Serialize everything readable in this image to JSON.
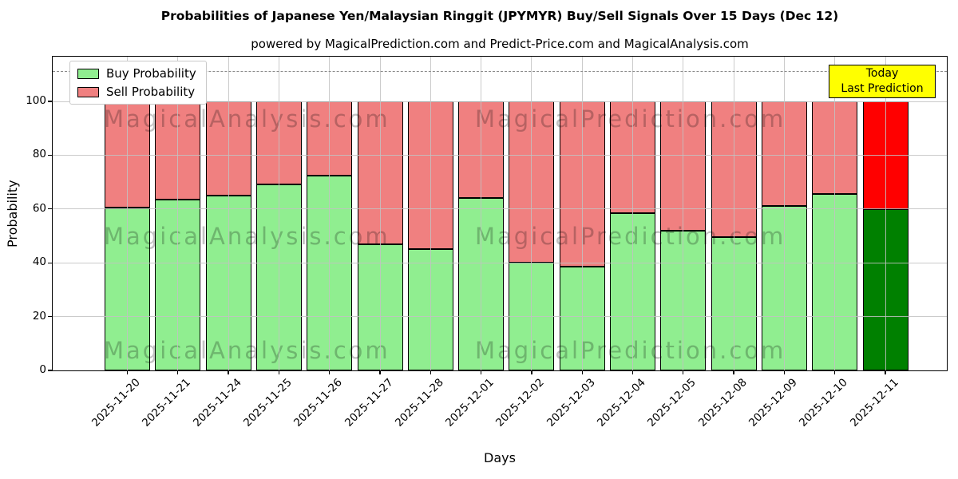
{
  "title": "Probabilities of Japanese Yen/Malaysian Ringgit (JPYMYR) Buy/Sell Signals Over 15 Days (Dec 12)",
  "subtitle": "powered by MagicalPrediction.com and Predict-Price.com and MagicalAnalysis.com",
  "legend": {
    "items": [
      {
        "label": "Buy Probability",
        "color": "#90EE90"
      },
      {
        "label": "Sell Probability",
        "color": "#F08080"
      }
    ]
  },
  "annotation_box": {
    "line1": "Today",
    "line2": "Last Prediction",
    "bg": "#FFFF00",
    "border": "#000000"
  },
  "axes": {
    "x_label": "Days",
    "y_label": "Probability",
    "y_ticks": [
      0,
      20,
      40,
      60,
      80,
      100
    ]
  },
  "watermarks": {
    "left": "MagicalAnalysis.com",
    "right": "MagicalPrediction.com"
  },
  "chart_data": {
    "type": "bar",
    "stacked": true,
    "title": "Probabilities of Japanese Yen/Malaysian Ringgit (JPYMYR) Buy/Sell Signals Over 15 Days (Dec 12)",
    "xlabel": "Days",
    "ylabel": "Probability",
    "ylim": [
      0,
      116
    ],
    "grid": true,
    "legend_position": "upper left",
    "dashed_line_y": 111,
    "bar_edge_color": "#000000",
    "categories": [
      "2025-11-20",
      "2025-11-21",
      "2025-11-24",
      "2025-11-25",
      "2025-11-26",
      "2025-11-27",
      "2025-11-28",
      "2025-12-01",
      "2025-12-02",
      "2025-12-03",
      "2025-12-04",
      "2025-12-05",
      "2025-12-08",
      "2025-12-09",
      "2025-12-10",
      "2025-12-11"
    ],
    "series": [
      {
        "name": "Buy Probability",
        "color": "#90EE90",
        "values": [
          60.5,
          63.5,
          65,
          69,
          72.5,
          47,
          45,
          64,
          40,
          38.5,
          58.5,
          52,
          49.5,
          61,
          65.5,
          60
        ]
      },
      {
        "name": "Sell Probability",
        "color": "#F08080",
        "values": [
          39.5,
          36.5,
          35,
          31,
          27.5,
          53,
          55,
          36,
          60,
          61.5,
          41.5,
          48,
          50.5,
          39,
          34.5,
          40
        ]
      }
    ],
    "highlight_last_bar": {
      "index": 15,
      "buy_color": "#008000",
      "sell_color": "#FF0000"
    }
  }
}
